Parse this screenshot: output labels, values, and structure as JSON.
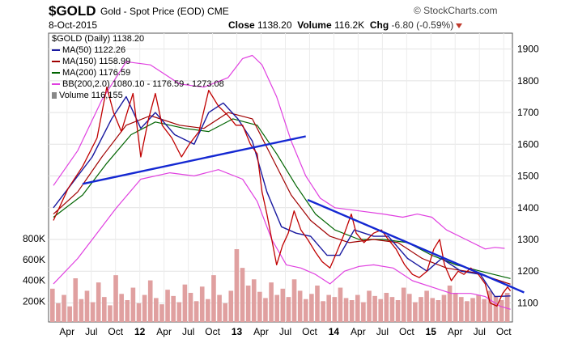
{
  "header": {
    "symbol": "$GOLD",
    "description": "Gold - Spot Price (EOD)  CME",
    "brand": "© StockCharts.com",
    "date": "8-Oct-2015",
    "close_label": "Close",
    "close_value": "1138.20",
    "volume_label": "Volume",
    "volume_value": "116.2K",
    "chg_label": "Chg",
    "chg_value": "-6.80 (-0.59%)"
  },
  "legend": {
    "title": "$GOLD (Daily) 1138.20",
    "ma50": "MA(50) 1122.26",
    "ma150": "MA(150) 1158.99",
    "ma200": "MA(200) 1176.59",
    "bb": "BB(200,2.0) 1080.10 - 1176.59 - 1273.08",
    "volume": "Volume 116,155"
  },
  "colors": {
    "price": "#c00000",
    "ma50": "#1a1aa0",
    "ma150": "#a00000",
    "ma200": "#006400",
    "bb": "#e040e0",
    "trend": "#1428d2",
    "volume": "#e0a0a0"
  },
  "chart_data": {
    "type": "line",
    "x_tick_labels": [
      "Apr",
      "Jul",
      "Oct",
      "12",
      "Apr",
      "Jul",
      "Oct",
      "13",
      "Apr",
      "Jul",
      "Oct",
      "14",
      "Apr",
      "Jul",
      "Oct",
      "15",
      "Apr",
      "Jul",
      "Oct"
    ],
    "x_tick_bold": [
      false,
      false,
      false,
      true,
      false,
      false,
      false,
      true,
      false,
      false,
      false,
      true,
      false,
      false,
      false,
      true,
      false,
      false,
      false
    ],
    "y_ticks": [
      1100,
      1200,
      1300,
      1400,
      1500,
      1600,
      1700,
      1800,
      1900
    ],
    "ylim": [
      1040,
      1950
    ],
    "volume_ticks": [
      "200K",
      "400K",
      "600K",
      "800K"
    ],
    "volume_tick_values": [
      200000,
      400000,
      600000,
      800000
    ],
    "xlim": [
      2011.05,
      2015.83
    ],
    "series": [
      {
        "key": "price",
        "values": [
          [
            2011.1,
            1360
          ],
          [
            2011.25,
            1460
          ],
          [
            2011.4,
            1530
          ],
          [
            2011.55,
            1620
          ],
          [
            2011.65,
            1780
          ],
          [
            2011.72,
            1700
          ],
          [
            2011.8,
            1640
          ],
          [
            2011.92,
            1760
          ],
          [
            2012.0,
            1560
          ],
          [
            2012.08,
            1680
          ],
          [
            2012.15,
            1760
          ],
          [
            2012.22,
            1660
          ],
          [
            2012.32,
            1620
          ],
          [
            2012.42,
            1560
          ],
          [
            2012.5,
            1600
          ],
          [
            2012.6,
            1640
          ],
          [
            2012.7,
            1770
          ],
          [
            2012.8,
            1720
          ],
          [
            2012.9,
            1690
          ],
          [
            2012.98,
            1660
          ],
          [
            2013.05,
            1660
          ],
          [
            2013.13,
            1600
          ],
          [
            2013.2,
            1570
          ],
          [
            2013.25,
            1450
          ],
          [
            2013.3,
            1380
          ],
          [
            2013.35,
            1300
          ],
          [
            2013.4,
            1220
          ],
          [
            2013.46,
            1280
          ],
          [
            2013.52,
            1320
          ],
          [
            2013.58,
            1390
          ],
          [
            2013.65,
            1330
          ],
          [
            2013.72,
            1300
          ],
          [
            2013.8,
            1260
          ],
          [
            2013.87,
            1230
          ],
          [
            2013.95,
            1210
          ],
          [
            2014.02,
            1260
          ],
          [
            2014.1,
            1320
          ],
          [
            2014.17,
            1380
          ],
          [
            2014.22,
            1320
          ],
          [
            2014.3,
            1290
          ],
          [
            2014.4,
            1320
          ],
          [
            2014.48,
            1330
          ],
          [
            2014.55,
            1300
          ],
          [
            2014.63,
            1270
          ],
          [
            2014.72,
            1220
          ],
          [
            2014.8,
            1190
          ],
          [
            2014.87,
            1180
          ],
          [
            2014.95,
            1200
          ],
          [
            2015.02,
            1270
          ],
          [
            2015.08,
            1300
          ],
          [
            2015.13,
            1220
          ],
          [
            2015.2,
            1170
          ],
          [
            2015.27,
            1200
          ],
          [
            2015.33,
            1190
          ],
          [
            2015.4,
            1210
          ],
          [
            2015.48,
            1190
          ],
          [
            2015.55,
            1160
          ],
          [
            2015.6,
            1100
          ],
          [
            2015.67,
            1090
          ],
          [
            2015.73,
            1130
          ],
          [
            2015.78,
            1150
          ],
          [
            2015.81,
            1138
          ]
        ]
      },
      {
        "key": "ma50",
        "values": [
          [
            2011.1,
            1400
          ],
          [
            2011.3,
            1480
          ],
          [
            2011.5,
            1560
          ],
          [
            2011.7,
            1680
          ],
          [
            2011.85,
            1750
          ],
          [
            2012.0,
            1650
          ],
          [
            2012.15,
            1700
          ],
          [
            2012.35,
            1630
          ],
          [
            2012.55,
            1600
          ],
          [
            2012.7,
            1700
          ],
          [
            2012.85,
            1730
          ],
          [
            2013.0,
            1680
          ],
          [
            2013.15,
            1610
          ],
          [
            2013.3,
            1450
          ],
          [
            2013.45,
            1340
          ],
          [
            2013.6,
            1320
          ],
          [
            2013.75,
            1310
          ],
          [
            2013.92,
            1250
          ],
          [
            2014.05,
            1250
          ],
          [
            2014.2,
            1330
          ],
          [
            2014.4,
            1310
          ],
          [
            2014.55,
            1310
          ],
          [
            2014.75,
            1240
          ],
          [
            2014.95,
            1200
          ],
          [
            2015.1,
            1240
          ],
          [
            2015.3,
            1200
          ],
          [
            2015.5,
            1190
          ],
          [
            2015.65,
            1120
          ],
          [
            2015.81,
            1122
          ]
        ]
      },
      {
        "key": "ma150",
        "values": [
          [
            2011.1,
            1380
          ],
          [
            2011.35,
            1450
          ],
          [
            2011.6,
            1560
          ],
          [
            2011.85,
            1660
          ],
          [
            2012.1,
            1690
          ],
          [
            2012.4,
            1660
          ],
          [
            2012.65,
            1650
          ],
          [
            2012.9,
            1700
          ],
          [
            2013.15,
            1680
          ],
          [
            2013.35,
            1560
          ],
          [
            2013.55,
            1440
          ],
          [
            2013.75,
            1360
          ],
          [
            2013.95,
            1310
          ],
          [
            2014.15,
            1290
          ],
          [
            2014.4,
            1300
          ],
          [
            2014.65,
            1290
          ],
          [
            2014.9,
            1240
          ],
          [
            2015.15,
            1210
          ],
          [
            2015.45,
            1195
          ],
          [
            2015.7,
            1170
          ],
          [
            2015.81,
            1159
          ]
        ]
      },
      {
        "key": "ma200",
        "values": [
          [
            2011.1,
            1370
          ],
          [
            2011.4,
            1440
          ],
          [
            2011.65,
            1540
          ],
          [
            2011.9,
            1630
          ],
          [
            2012.15,
            1670
          ],
          [
            2012.45,
            1650
          ],
          [
            2012.7,
            1640
          ],
          [
            2012.95,
            1680
          ],
          [
            2013.2,
            1660
          ],
          [
            2013.4,
            1570
          ],
          [
            2013.6,
            1470
          ],
          [
            2013.8,
            1380
          ],
          [
            2014.0,
            1330
          ],
          [
            2014.25,
            1300
          ],
          [
            2014.5,
            1300
          ],
          [
            2014.75,
            1290
          ],
          [
            2015.0,
            1250
          ],
          [
            2015.25,
            1220
          ],
          [
            2015.5,
            1200
          ],
          [
            2015.81,
            1177
          ]
        ]
      },
      {
        "key": "bb_upper",
        "values": [
          [
            2011.1,
            1470
          ],
          [
            2011.35,
            1580
          ],
          [
            2011.6,
            1740
          ],
          [
            2011.85,
            1860
          ],
          [
            2012.1,
            1850
          ],
          [
            2012.4,
            1790
          ],
          [
            2012.65,
            1780
          ],
          [
            2012.9,
            1810
          ],
          [
            2013.05,
            1870
          ],
          [
            2013.15,
            1880
          ],
          [
            2013.25,
            1850
          ],
          [
            2013.4,
            1750
          ],
          [
            2013.55,
            1610
          ],
          [
            2013.7,
            1500
          ],
          [
            2013.85,
            1430
          ],
          [
            2014.0,
            1400
          ],
          [
            2014.25,
            1390
          ],
          [
            2014.5,
            1380
          ],
          [
            2014.7,
            1370
          ],
          [
            2014.85,
            1380
          ],
          [
            2015.0,
            1370
          ],
          [
            2015.15,
            1330
          ],
          [
            2015.35,
            1300
          ],
          [
            2015.55,
            1270
          ],
          [
            2015.65,
            1275
          ],
          [
            2015.75,
            1272
          ]
        ]
      },
      {
        "key": "bb_lower",
        "values": [
          [
            2011.1,
            1160
          ],
          [
            2011.35,
            1240
          ],
          [
            2011.55,
            1320
          ],
          [
            2011.75,
            1400
          ],
          [
            2012.0,
            1490
          ],
          [
            2012.3,
            1510
          ],
          [
            2012.55,
            1500
          ],
          [
            2012.8,
            1520
          ],
          [
            2013.05,
            1490
          ],
          [
            2013.2,
            1420
          ],
          [
            2013.35,
            1300
          ],
          [
            2013.5,
            1220
          ],
          [
            2013.65,
            1210
          ],
          [
            2013.8,
            1190
          ],
          [
            2013.95,
            1160
          ],
          [
            2014.1,
            1200
          ],
          [
            2014.25,
            1215
          ],
          [
            2014.4,
            1220
          ],
          [
            2014.6,
            1210
          ],
          [
            2014.8,
            1170
          ],
          [
            2015.0,
            1150
          ],
          [
            2015.2,
            1130
          ],
          [
            2015.4,
            1130
          ],
          [
            2015.55,
            1120
          ],
          [
            2015.7,
            1090
          ],
          [
            2015.81,
            1080
          ]
        ]
      },
      {
        "key": "trend1",
        "values": [
          [
            2011.4,
            1475
          ],
          [
            2013.7,
            1625
          ]
        ]
      },
      {
        "key": "trend2",
        "values": [
          [
            2013.72,
            1425
          ],
          [
            2015.95,
            1133
          ]
        ]
      }
    ],
    "volume": [
      320000,
      180000,
      260000,
      150000,
      420000,
      220000,
      300000,
      190000,
      380000,
      240000,
      160000,
      450000,
      270000,
      210000,
      330000,
      180000,
      260000,
      400000,
      230000,
      170000,
      310000,
      250000,
      190000,
      360000,
      280000,
      200000,
      340000,
      220000,
      450000,
      260000,
      180000,
      300000,
      700000,
      520000,
      350000,
      410000,
      290000,
      230000,
      380000,
      260000,
      320000,
      240000,
      410000,
      300000,
      220000,
      270000,
      350000,
      200000,
      260000,
      240000,
      330000,
      230000,
      210000,
      260000,
      190000,
      300000,
      250000,
      220000,
      280000,
      240000,
      210000,
      330000,
      270000,
      190000,
      240000,
      300000,
      230000,
      210000,
      260000,
      350000,
      280000,
      240000,
      200000,
      230000,
      260000,
      220000,
      300000,
      250000,
      210000,
      280000
    ]
  }
}
